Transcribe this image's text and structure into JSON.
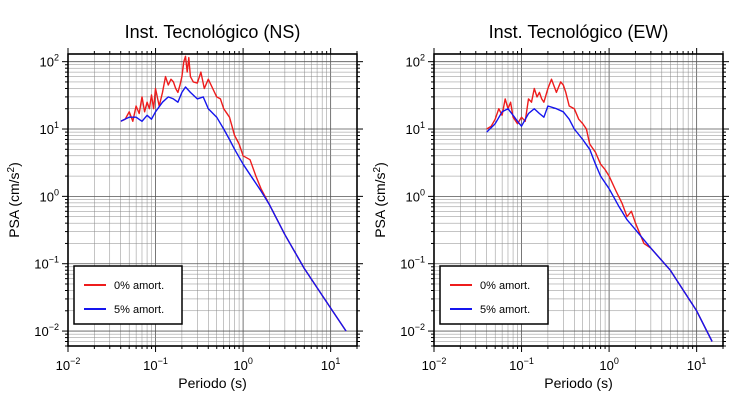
{
  "chart_data": [
    {
      "type": "line",
      "title": "Inst. Tecnológico (NS)",
      "xlabel": "Periodo (s)",
      "ylabel": "PSA (cm/s",
      "ylabel_sup": "2",
      "ylabel_end": ")",
      "x_scale": "log",
      "y_scale": "log",
      "xlim": [
        0.01,
        20
      ],
      "ylim": [
        0.006,
        130
      ],
      "grid": true,
      "legend_position": "bottom-left",
      "x_ticks": [
        {
          "value": 0.01,
          "base": "10",
          "exp": "−2"
        },
        {
          "value": 0.1,
          "base": "10",
          "exp": "−1"
        },
        {
          "value": 1,
          "base": "10",
          "exp": "0"
        },
        {
          "value": 10,
          "base": "10",
          "exp": "1"
        }
      ],
      "y_ticks": [
        {
          "value": 0.01,
          "base": "10",
          "exp": "−2"
        },
        {
          "value": 0.1,
          "base": "10",
          "exp": "−1"
        },
        {
          "value": 1,
          "base": "10",
          "exp": "0"
        },
        {
          "value": 10,
          "base": "10",
          "exp": "1"
        },
        {
          "value": 100,
          "base": "10",
          "exp": "2"
        }
      ],
      "series": [
        {
          "name": "0% amort.",
          "color": "#ee1c1c",
          "x": [
            0.04,
            0.045,
            0.05,
            0.055,
            0.06,
            0.065,
            0.07,
            0.075,
            0.08,
            0.085,
            0.09,
            0.095,
            0.1,
            0.11,
            0.12,
            0.13,
            0.14,
            0.15,
            0.16,
            0.17,
            0.18,
            0.19,
            0.2,
            0.21,
            0.22,
            0.23,
            0.24,
            0.25,
            0.27,
            0.3,
            0.33,
            0.36,
            0.4,
            0.45,
            0.5,
            0.55,
            0.6,
            0.7,
            0.8,
            0.9,
            1.0,
            1.2,
            1.4,
            1.6,
            2,
            3,
            5,
            10,
            15
          ],
          "y": [
            13,
            14,
            18,
            13,
            22,
            17,
            30,
            18,
            25,
            20,
            32,
            20,
            40,
            22,
            35,
            60,
            45,
            55,
            50,
            40,
            35,
            45,
            60,
            100,
            120,
            70,
            115,
            60,
            50,
            48,
            70,
            40,
            55,
            40,
            30,
            28,
            20,
            15,
            8,
            6,
            4,
            3.5,
            2.0,
            1.3,
            0.75,
            0.27,
            0.085,
            0.022,
            0.01
          ]
        },
        {
          "name": "5% amort.",
          "color": "#1515ee",
          "x": [
            0.04,
            0.05,
            0.06,
            0.07,
            0.08,
            0.09,
            0.1,
            0.12,
            0.14,
            0.16,
            0.18,
            0.2,
            0.22,
            0.25,
            0.3,
            0.35,
            0.4,
            0.5,
            0.6,
            0.7,
            0.8,
            1.0,
            1.3,
            1.6,
            2,
            3,
            5,
            10,
            15
          ],
          "y": [
            13,
            15,
            15,
            13,
            16,
            14,
            18,
            25,
            30,
            28,
            25,
            35,
            42,
            35,
            28,
            30,
            20,
            15,
            10,
            7,
            5,
            3,
            1.8,
            1.2,
            0.75,
            0.27,
            0.085,
            0.022,
            0.01
          ]
        }
      ]
    },
    {
      "type": "line",
      "title": "Inst. Tecnológico (EW)",
      "xlabel": "Periodo (s)",
      "ylabel": "PSA (cm/s",
      "ylabel_sup": "2",
      "ylabel_end": ")",
      "x_scale": "log",
      "y_scale": "log",
      "xlim": [
        0.01,
        20
      ],
      "ylim": [
        0.006,
        130
      ],
      "grid": true,
      "legend_position": "bottom-left",
      "x_ticks": [
        {
          "value": 0.01,
          "base": "10",
          "exp": "−2"
        },
        {
          "value": 0.1,
          "base": "10",
          "exp": "−1"
        },
        {
          "value": 1,
          "base": "10",
          "exp": "0"
        },
        {
          "value": 10,
          "base": "10",
          "exp": "1"
        }
      ],
      "y_ticks": [
        {
          "value": 0.01,
          "base": "10",
          "exp": "−2"
        },
        {
          "value": 0.1,
          "base": "10",
          "exp": "−1"
        },
        {
          "value": 1,
          "base": "10",
          "exp": "0"
        },
        {
          "value": 10,
          "base": "10",
          "exp": "1"
        },
        {
          "value": 100,
          "base": "10",
          "exp": "2"
        }
      ],
      "series": [
        {
          "name": "0% amort.",
          "color": "#ee1c1c",
          "x": [
            0.04,
            0.045,
            0.05,
            0.055,
            0.06,
            0.065,
            0.07,
            0.075,
            0.08,
            0.09,
            0.1,
            0.11,
            0.12,
            0.13,
            0.14,
            0.15,
            0.16,
            0.17,
            0.18,
            0.2,
            0.22,
            0.25,
            0.28,
            0.3,
            0.32,
            0.35,
            0.4,
            0.45,
            0.5,
            0.55,
            0.6,
            0.7,
            0.8,
            0.9,
            1.0,
            1.2,
            1.4,
            1.6,
            1.8,
            2,
            2.5,
            3,
            5,
            10,
            15
          ],
          "y": [
            10,
            11,
            14,
            20,
            16,
            28,
            20,
            25,
            15,
            12,
            15,
            13,
            28,
            25,
            40,
            30,
            35,
            28,
            25,
            40,
            55,
            35,
            50,
            45,
            35,
            22,
            20,
            14,
            12,
            10,
            6,
            4.5,
            3,
            2.5,
            2,
            1.2,
            0.8,
            0.5,
            0.6,
            0.4,
            0.2,
            0.17,
            0.08,
            0.02,
            0.007
          ]
        },
        {
          "name": "5% amort.",
          "color": "#1515ee",
          "x": [
            0.04,
            0.05,
            0.06,
            0.07,
            0.08,
            0.09,
            0.1,
            0.12,
            0.14,
            0.16,
            0.18,
            0.2,
            0.25,
            0.3,
            0.35,
            0.4,
            0.5,
            0.6,
            0.7,
            0.8,
            1.0,
            1.3,
            1.6,
            2,
            3,
            5,
            10,
            15
          ],
          "y": [
            9,
            12,
            18,
            20,
            16,
            13,
            11,
            17,
            20,
            17,
            15,
            22,
            20,
            18,
            14,
            10,
            7,
            5,
            3,
            2,
            1.3,
            0.7,
            0.45,
            0.32,
            0.17,
            0.08,
            0.02,
            0.007
          ]
        }
      ]
    }
  ]
}
